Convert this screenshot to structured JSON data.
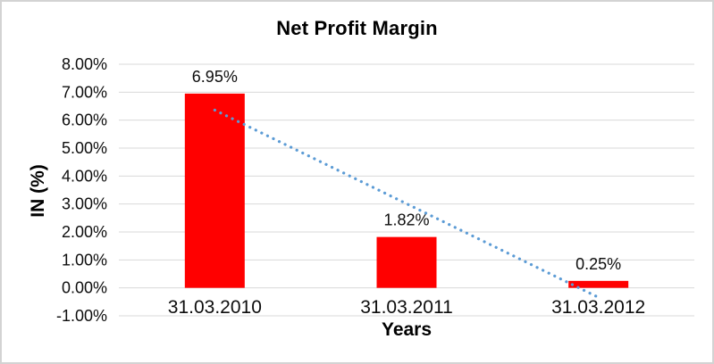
{
  "chart_data": {
    "type": "bar",
    "title": "Net Profit Margin",
    "xlabel": "Years",
    "ylabel": "IN (%)",
    "categories": [
      "31.03.2010",
      "31.03.2011",
      "31.03.2012"
    ],
    "values": [
      6.95,
      1.82,
      0.25
    ],
    "data_labels": [
      "6.95%",
      "1.82%",
      "0.25%"
    ],
    "unit": "percent",
    "ylim": [
      -1,
      8
    ],
    "y_ticks": [
      {
        "value": 8,
        "label": "8.00%"
      },
      {
        "value": 7,
        "label": "7.00%"
      },
      {
        "value": 6,
        "label": "6.00%"
      },
      {
        "value": 5,
        "label": "5.00%"
      },
      {
        "value": 4,
        "label": "4.00%"
      },
      {
        "value": 3,
        "label": "3.00%"
      },
      {
        "value": 2,
        "label": "2.00%"
      },
      {
        "value": 1,
        "label": "1.00%"
      },
      {
        "value": 0,
        "label": "0.00%"
      },
      {
        "value": -1,
        "label": "-1.00%"
      }
    ],
    "grid": true,
    "legend": "none",
    "colors": {
      "bar": "#FF0000",
      "gridline": "#D9D9D9",
      "trendline": "#5B9BD5",
      "text": "#0d0d0d"
    },
    "trendline": {
      "type": "linear",
      "style": "dotted",
      "start_value": 6.36,
      "end_value": -0.34
    }
  }
}
